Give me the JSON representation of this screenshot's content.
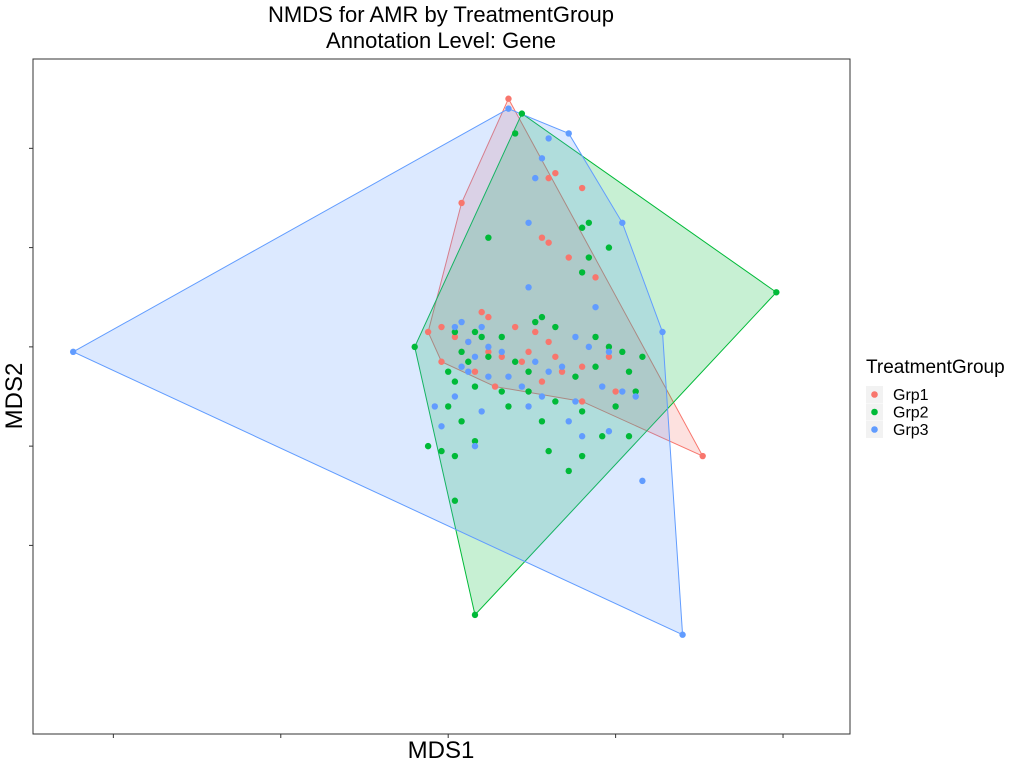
{
  "chart_data": {
    "type": "scatter",
    "title": "NMDS for AMR by TreatmentGroup",
    "subtitle": "Annotation Level: Gene",
    "xlabel": "MDS1",
    "ylabel": "MDS2",
    "xlim": [
      -0.62,
      0.6
    ],
    "ylim": [
      -0.78,
      0.58
    ],
    "grid": false,
    "legend": {
      "title": "TreatmentGroup",
      "placement": "right"
    },
    "series": [
      {
        "name": "Grp1",
        "color": "#F8766D",
        "hull": [
          [
            0.09,
            0.5
          ],
          [
            0.38,
            -0.22
          ],
          [
            0.2,
            -0.11
          ],
          [
            0.07,
            -0.08
          ],
          [
            -0.01,
            -0.03
          ],
          [
            -0.03,
            0.03
          ],
          [
            0.02,
            0.29
          ]
        ],
        "points": [
          [
            0.09,
            0.5
          ],
          [
            0.38,
            -0.22
          ],
          [
            0.2,
            -0.11
          ],
          [
            0.07,
            -0.08
          ],
          [
            -0.01,
            -0.03
          ],
          [
            -0.03,
            0.03
          ],
          [
            0.02,
            0.29
          ],
          [
            0.16,
            0.35
          ],
          [
            0.2,
            0.32
          ],
          [
            0.15,
            0.34
          ],
          [
            0.14,
            0.22
          ],
          [
            0.15,
            0.21
          ],
          [
            0.18,
            0.18
          ],
          [
            0.22,
            0.14
          ],
          [
            0.05,
            0.07
          ],
          [
            0.06,
            0.06
          ],
          [
            0.1,
            0.04
          ],
          [
            0.13,
            0.03
          ],
          [
            0.15,
            0.01
          ],
          [
            -0.01,
            0.04
          ],
          [
            0.01,
            0.02
          ],
          [
            0.03,
            0.01
          ],
          [
            0.08,
            -0.02
          ],
          [
            0.12,
            -0.01
          ],
          [
            0.17,
            -0.05
          ],
          [
            0.2,
            -0.04
          ],
          [
            0.25,
            -0.09
          ],
          [
            0.04,
            -0.05
          ],
          [
            0.06,
            -0.01
          ],
          [
            0.11,
            -0.03
          ],
          [
            0.14,
            -0.07
          ],
          [
            0.16,
            -0.02
          ],
          [
            0.24,
            -0.02
          ]
        ]
      },
      {
        "name": "Grp2",
        "color": "#00BA38",
        "hull": [
          [
            0.11,
            0.47
          ],
          [
            0.49,
            0.11
          ],
          [
            0.04,
            -0.54
          ],
          [
            -0.05,
            0.0
          ]
        ],
        "points": [
          [
            0.11,
            0.47
          ],
          [
            0.49,
            0.11
          ],
          [
            0.04,
            -0.54
          ],
          [
            -0.05,
            0.0
          ],
          [
            0.1,
            0.43
          ],
          [
            0.21,
            0.25
          ],
          [
            0.2,
            0.24
          ],
          [
            0.06,
            0.22
          ],
          [
            0.21,
            0.18
          ],
          [
            0.24,
            0.2
          ],
          [
            0.2,
            0.15
          ],
          [
            0.13,
            0.05
          ],
          [
            0.01,
            0.03
          ],
          [
            0.04,
            0.03
          ],
          [
            0.05,
            0.02
          ],
          [
            0.14,
            0.06
          ],
          [
            0.16,
            0.04
          ],
          [
            0.08,
            0.02
          ],
          [
            0.02,
            -0.01
          ],
          [
            0.03,
            -0.03
          ],
          [
            0.06,
            -0.02
          ],
          [
            0.1,
            -0.03
          ],
          [
            0.12,
            -0.05
          ],
          [
            0.22,
            0.02
          ],
          [
            0.24,
            0.0
          ],
          [
            0.26,
            -0.01
          ],
          [
            0.0,
            -0.05
          ],
          [
            0.01,
            -0.07
          ],
          [
            0.04,
            -0.08
          ],
          [
            0.08,
            -0.09
          ],
          [
            0.12,
            -0.09
          ],
          [
            0.16,
            -0.11
          ],
          [
            0.19,
            -0.06
          ],
          [
            0.22,
            -0.04
          ],
          [
            0.27,
            -0.05
          ],
          [
            0.29,
            -0.02
          ],
          [
            0.0,
            -0.12
          ],
          [
            0.02,
            -0.15
          ],
          [
            0.04,
            -0.19
          ],
          [
            0.09,
            -0.12
          ],
          [
            0.14,
            -0.15
          ],
          [
            0.2,
            -0.13
          ],
          [
            0.25,
            -0.12
          ],
          [
            0.28,
            -0.09
          ],
          [
            -0.03,
            -0.2
          ],
          [
            -0.01,
            -0.21
          ],
          [
            0.01,
            -0.22
          ],
          [
            0.15,
            -0.21
          ],
          [
            0.23,
            -0.18
          ],
          [
            0.18,
            -0.25
          ],
          [
            0.01,
            -0.31
          ],
          [
            0.2,
            -0.22
          ],
          [
            0.27,
            -0.18
          ]
        ]
      },
      {
        "name": "Grp3",
        "color": "#619CFF",
        "hull": [
          [
            -0.56,
            -0.01
          ],
          [
            0.09,
            0.48
          ],
          [
            0.18,
            0.43
          ],
          [
            0.26,
            0.25
          ],
          [
            0.32,
            0.03
          ],
          [
            0.35,
            -0.58
          ]
        ],
        "points": [
          [
            -0.56,
            -0.01
          ],
          [
            0.09,
            0.48
          ],
          [
            0.18,
            0.43
          ],
          [
            0.26,
            0.25
          ],
          [
            0.32,
            0.03
          ],
          [
            0.35,
            -0.58
          ],
          [
            0.15,
            0.42
          ],
          [
            0.14,
            0.38
          ],
          [
            0.13,
            0.34
          ],
          [
            0.12,
            0.25
          ],
          [
            0.12,
            0.12
          ],
          [
            0.22,
            0.08
          ],
          [
            0.01,
            0.04
          ],
          [
            0.02,
            0.05
          ],
          [
            0.05,
            0.04
          ],
          [
            0.03,
            0.01
          ],
          [
            0.06,
            0.0
          ],
          [
            0.04,
            -0.02
          ],
          [
            0.08,
            -0.01
          ],
          [
            0.13,
            -0.03
          ],
          [
            0.15,
            -0.05
          ],
          [
            0.17,
            -0.04
          ],
          [
            0.19,
            0.02
          ],
          [
            0.21,
            0.0
          ],
          [
            0.24,
            -0.01
          ],
          [
            0.03,
            -0.05
          ],
          [
            0.06,
            -0.06
          ],
          [
            0.09,
            -0.06
          ],
          [
            0.11,
            -0.08
          ],
          [
            0.14,
            -0.1
          ],
          [
            0.19,
            -0.11
          ],
          [
            0.23,
            -0.08
          ],
          [
            0.26,
            -0.09
          ],
          [
            0.28,
            -0.1
          ],
          [
            -0.02,
            -0.12
          ],
          [
            0.01,
            -0.1
          ],
          [
            0.05,
            -0.13
          ],
          [
            0.12,
            -0.12
          ],
          [
            0.18,
            -0.15
          ],
          [
            0.2,
            -0.18
          ],
          [
            0.24,
            -0.17
          ],
          [
            -0.01,
            -0.16
          ],
          [
            0.04,
            -0.2
          ],
          [
            0.29,
            -0.27
          ],
          [
            0.02,
            -0.04
          ]
        ]
      }
    ]
  }
}
